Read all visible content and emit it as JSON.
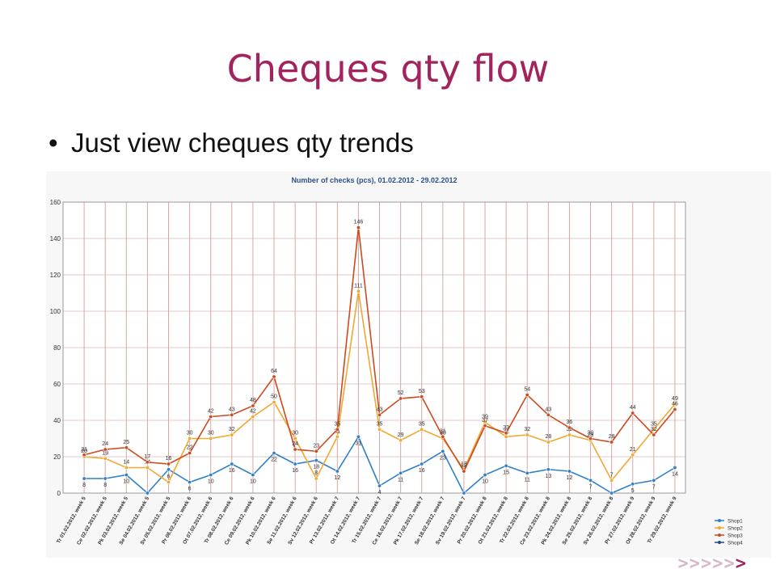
{
  "slide": {
    "title": "Cheques qty flow",
    "bullet": "Just view cheques qty trends",
    "footer_arrows_light": ">>>>>",
    "footer_arrows_dark": ">"
  },
  "colors": {
    "title": "#a3245d",
    "Shop1": "#2f7fc8",
    "Shop2": "#f0a830",
    "Shop3": "#cc4a1f",
    "Shop4": "#1f4e85",
    "chart_title": "#2c4f8a",
    "gridline": "#d7a6a6"
  },
  "chart_data": {
    "type": "line",
    "title": "Number of checks (pcs), 01.02.2012 - 29.02.2012",
    "xlabel": "",
    "ylabel": "",
    "ylim": [
      0,
      160
    ],
    "yticks": [
      0,
      20,
      40,
      60,
      80,
      100,
      120,
      140,
      160
    ],
    "grid": true,
    "legend_position": "bottom-right",
    "categories": [
      "Tr 01.02.2012, week 5",
      "Ce 02.02.2012, week 5",
      "Pk 03.02.2012, week 5",
      "Se 04.02.2012, week 5",
      "Sv 05.02.2012, week 5",
      "Pr 06.02.2012, week 6",
      "Ot 07.02.2012, week 6",
      "Tr 08.02.2012, week 6",
      "Ce 09.02.2012, week 6",
      "Pk 10.02.2012, week 6",
      "Se 11.02.2012, week 6",
      "Sv 12.02.2012, week 6",
      "Pr 13.02.2012, week 7",
      "Ot 14.02.2012, week 7",
      "Tr 15.02.2012, week 7",
      "Ce 16.02.2012, week 7",
      "Pk 17.02.2012, week 7",
      "Se 18.02.2012, week 7",
      "Sv 19.02.2012, week 7",
      "Pr 20.02.2012, week 8",
      "Ot 21.02.2012, week 8",
      "Tr 22.02.2012, week 8",
      "Ce 23.02.2012, week 8",
      "Pk 24.02.2012, week 8",
      "Se 25.02.2012, week 8",
      "Sv 26.02.2012, week 8",
      "Pr 27.02.2012, week 9",
      "Ot 28.02.2012, week 9",
      "Tr 29.02.2012, week 9"
    ],
    "series": [
      {
        "name": "Shop1",
        "values": [
          8,
          8,
          10,
          0,
          13,
          6,
          10,
          16,
          10,
          22,
          16,
          18,
          12,
          31,
          4,
          11,
          16,
          23,
          0,
          10,
          15,
          11,
          13,
          12,
          7,
          0,
          5,
          7,
          14
        ],
        "labels": [
          "8",
          "8",
          "10",
          "",
          "",
          "6",
          "10",
          "16",
          "10",
          "22",
          "16",
          "18",
          "12",
          "31",
          "4",
          "11",
          "16",
          "23",
          "",
          "10",
          "15",
          "11",
          "13",
          "12",
          "7",
          "",
          "5",
          "7",
          "14"
        ]
      },
      {
        "name": "Shop2",
        "values": [
          20,
          19,
          14,
          14,
          6,
          30,
          30,
          32,
          42,
          50,
          30,
          8,
          31,
          111,
          35,
          29,
          35,
          30,
          13,
          39,
          31,
          32,
          28,
          32,
          29,
          7,
          21,
          35,
          49
        ],
        "labels": [
          "20",
          "19",
          "14",
          "14",
          "6",
          "30",
          "30",
          "32",
          "42",
          "50",
          "30",
          "8",
          "31",
          "111",
          "35",
          "29",
          "35",
          "30",
          "13",
          "39",
          "31",
          "32",
          "28",
          "32",
          "29",
          "7",
          "21",
          "35",
          "49"
        ]
      },
      {
        "name": "Shop3",
        "values": [
          21,
          24,
          25,
          17,
          16,
          22,
          42,
          43,
          48,
          64,
          24,
          23,
          35,
          146,
          43,
          52,
          53,
          31,
          12,
          37,
          33,
          54,
          43,
          36,
          30,
          28,
          44,
          32,
          46
        ],
        "labels": [
          "21",
          "24",
          "25",
          "17",
          "16",
          "22",
          "42",
          "43",
          "48",
          "64",
          "24",
          "23",
          "35",
          "146",
          "43",
          "52",
          "53",
          "31",
          "12",
          "37",
          "33",
          "54",
          "43",
          "36",
          "30",
          "28",
          "44",
          "32",
          "46"
        ]
      },
      {
        "name": "Shop4",
        "values": [
          null,
          null,
          null,
          null,
          null,
          null,
          null,
          null,
          null,
          null,
          null,
          null,
          null,
          null,
          null,
          null,
          null,
          null,
          null,
          null,
          null,
          null,
          null,
          null,
          null,
          null,
          null,
          null,
          null
        ],
        "labels": []
      }
    ]
  }
}
